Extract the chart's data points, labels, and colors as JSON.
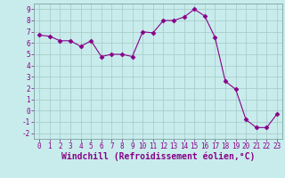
{
  "x": [
    0,
    1,
    2,
    3,
    4,
    5,
    6,
    7,
    8,
    9,
    10,
    11,
    12,
    13,
    14,
    15,
    16,
    17,
    18,
    19,
    20,
    21,
    22,
    23
  ],
  "y": [
    6.7,
    6.6,
    6.2,
    6.2,
    5.7,
    6.2,
    4.8,
    5.0,
    5.0,
    4.8,
    7.0,
    6.9,
    8.0,
    8.0,
    8.3,
    9.0,
    8.4,
    6.5,
    2.6,
    1.9,
    -0.8,
    -1.5,
    -1.5,
    -0.3
  ],
  "line_color": "#880088",
  "marker": "D",
  "marker_size": 2.5,
  "bg_color": "#c8ecec",
  "grid_color": "#aacccc",
  "xlabel": "Windchill (Refroidissement éolien,°C)",
  "xlim": [
    -0.5,
    23.5
  ],
  "ylim": [
    -2.5,
    9.5
  ],
  "yticks": [
    -2,
    -1,
    0,
    1,
    2,
    3,
    4,
    5,
    6,
    7,
    8,
    9
  ],
  "xticks": [
    0,
    1,
    2,
    3,
    4,
    5,
    6,
    7,
    8,
    9,
    10,
    11,
    12,
    13,
    14,
    15,
    16,
    17,
    18,
    19,
    20,
    21,
    22,
    23
  ],
  "tick_fontsize": 5.5,
  "xlabel_fontsize": 7.0,
  "tick_color": "#880088",
  "label_color": "#880088"
}
